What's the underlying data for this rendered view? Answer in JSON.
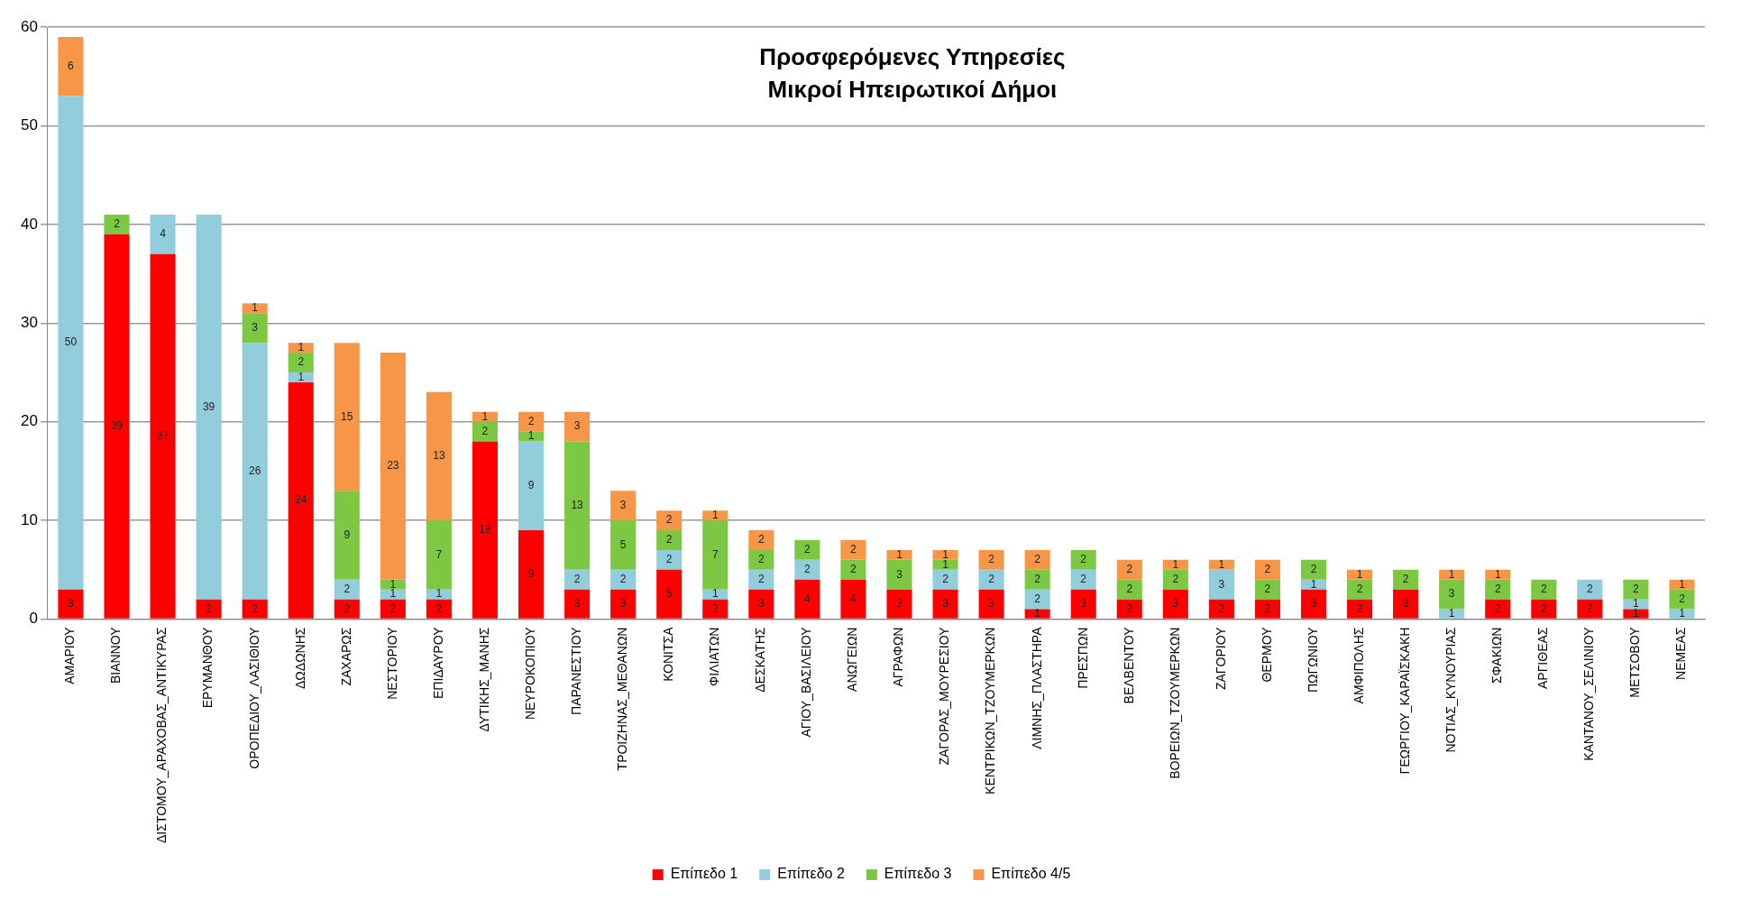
{
  "chart_data": {
    "type": "bar",
    "title": "Προσφερόμενες Υπηρεσίες\nΜικροί Ηπειρωτικοί Δήμοι",
    "categories": [
      "ΑΜΑΡΙΟΥ",
      "ΒΙΑΝΝΟΥ",
      "ΔΙΣΤΟΜΟΥ_ΑΡΑΧΟΒΑΣ_ΑΝΤΙΚΥΡΑΣ",
      "ΕΡΥΜΑΝΘΟΥ",
      "ΟΡΟΠΕΔΙΟΥ_ΛΑΣΙΘΙΟΥ",
      "ΔΩΔΩΝΗΣ",
      "ΖΑΧΑΡΩΣ",
      "ΝΕΣΤΟΡΙΟΥ",
      "ΕΠΙΔΑΥΡΟΥ",
      "ΔΥΤΙΚΗΣ_ΜΑΝΗΣ",
      "ΝΕΥΡΟΚΟΠΙΟΥ",
      "ΠΑΡΑΝΕΣΤΙΟΥ",
      "ΤΡΟΙΖΗΝΑΣ_ΜΕΘΑΝΩΝ",
      "ΚΟΝΙΤΣΑ",
      "ΦΙΛΙΑΤΩΝ",
      "ΔΕΣΚΑΤΗΣ",
      "ΑΓΙΟΥ_ΒΑΣΙΛΕΙΟΥ",
      "ΑΝΩΓΕΙΩΝ",
      "ΑΓΡΑΦΩΝ",
      "ΖΑΓΟΡΑΣ_ΜΟΥΡΕΣΙΟΥ",
      "ΚΕΝΤΡΙΚΩΝ_ΤΖΟΥΜΕΡΚΩΝ",
      "ΛΙΜΝΗΣ_ΠΛΑΣΤΗΡΑ",
      "ΠΡΕΣΠΩΝ",
      "ΒΕΛΒΕΝΤΟΥ",
      "ΒΟΡΕΙΩΝ_ΤΖΟΥΜΕΡΚΩΝ",
      "ΖΑΓΟΡΙΟΥ",
      "ΘΕΡΜΟΥ",
      "ΠΩΓΩΝΙΟΥ",
      "ΑΜΦΙΠΟΛΗΣ",
      "ΓΕΩΡΓΙΟΥ_ΚΑΡΑΪΣΚΑΚΗ",
      "ΝΟΤΙΑΣ_ΚΥΝΟΥΡΙΑΣ",
      "ΣΦΑΚΙΩΝ",
      "ΑΡΓΙΘΕΑΣ",
      "ΚΑΝΤΑΝΟΥ_ΣΕΛΙΝΙΟΥ",
      "ΜΕΤΣΟΒΟΥ",
      "ΝΕΜΕΑΣ"
    ],
    "series": [
      {
        "name": "Επίπεδο 1",
        "color": "#ff0000",
        "values": [
          3,
          39,
          37,
          2,
          2,
          24,
          2,
          2,
          2,
          18,
          9,
          3,
          3,
          5,
          2,
          3,
          4,
          4,
          3,
          3,
          3,
          1,
          3,
          2,
          3,
          2,
          2,
          3,
          2,
          3,
          null,
          2,
          2,
          2,
          1,
          null
        ]
      },
      {
        "name": "Επίπεδο 2",
        "color": "#92cddc",
        "values": [
          50,
          null,
          4,
          39,
          26,
          1,
          2,
          1,
          1,
          null,
          9,
          2,
          2,
          2,
          1,
          2,
          2,
          null,
          null,
          2,
          2,
          2,
          2,
          null,
          null,
          3,
          null,
          1,
          null,
          null,
          1,
          null,
          null,
          2,
          1,
          1
        ]
      },
      {
        "name": "Επίπεδο 3",
        "color": "#7dc843",
        "values": [
          null,
          2,
          null,
          null,
          3,
          2,
          9,
          1,
          7,
          2,
          1,
          13,
          5,
          2,
          7,
          2,
          2,
          2,
          3,
          1,
          null,
          2,
          2,
          2,
          2,
          null,
          2,
          2,
          2,
          2,
          3,
          2,
          2,
          null,
          2,
          2
        ]
      },
      {
        "name": "Επίπεδο 4/5",
        "color": "#f79646",
        "values": [
          6,
          null,
          null,
          null,
          1,
          1,
          15,
          23,
          13,
          1,
          2,
          3,
          3,
          2,
          1,
          2,
          null,
          2,
          1,
          1,
          2,
          2,
          null,
          2,
          1,
          1,
          2,
          null,
          1,
          null,
          1,
          1,
          null,
          null,
          null,
          1
        ]
      }
    ],
    "stacked": true,
    "ylim": [
      0,
      60
    ],
    "yticks": [
      0,
      10,
      20,
      30,
      40,
      50,
      60
    ],
    "grid": "y",
    "legend": "bottom",
    "data_labels": true
  }
}
